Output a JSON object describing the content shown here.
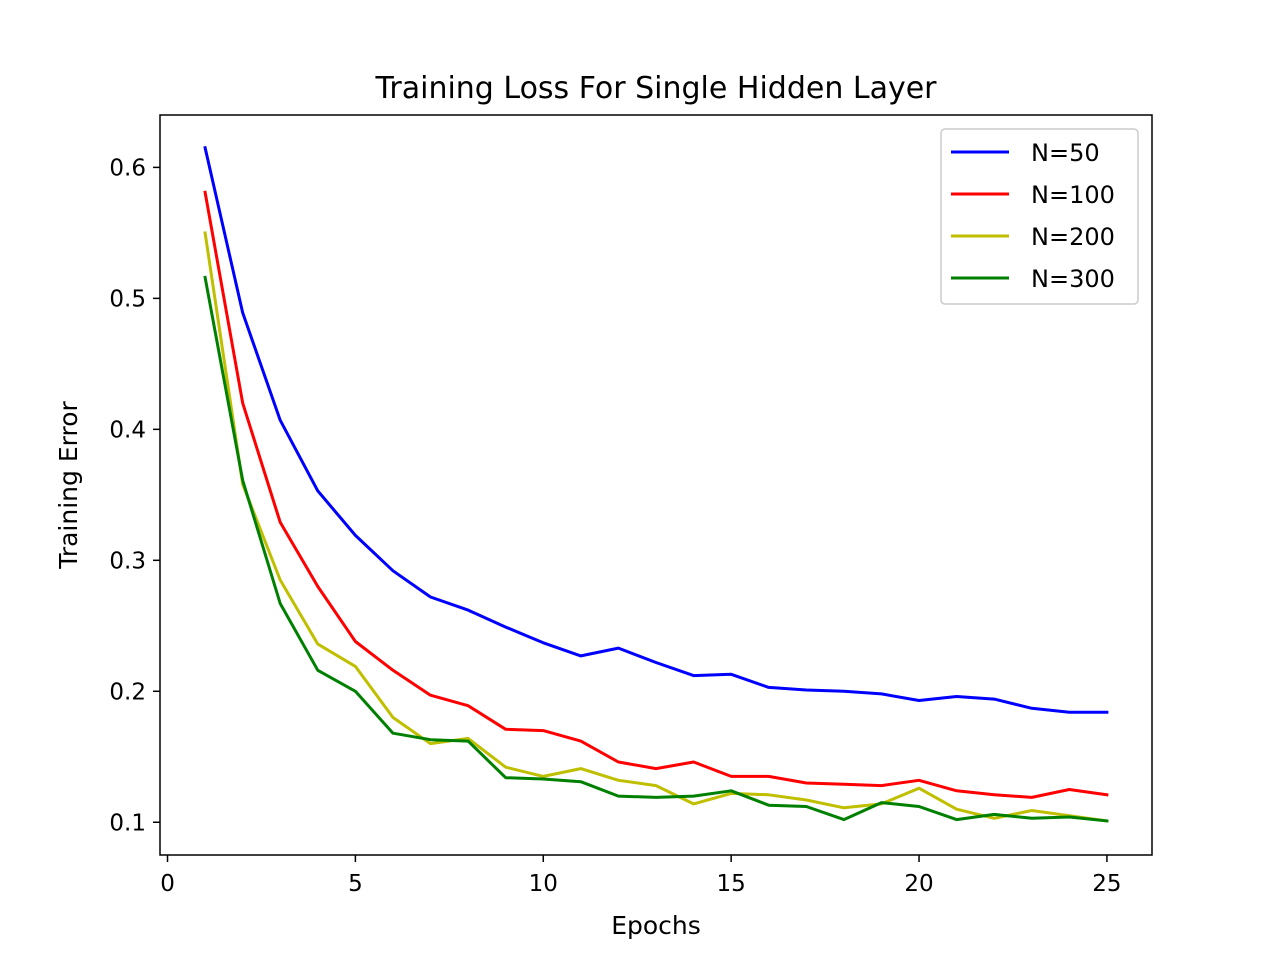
{
  "chart_data": {
    "type": "line",
    "title": "Training Loss For Single Hidden Layer",
    "xlabel": "Epochs",
    "ylabel": "Training Error",
    "xlim": [
      -0.2,
      26.2
    ],
    "ylim": [
      0.075,
      0.64
    ],
    "xticks": [
      0,
      5,
      10,
      15,
      20,
      25
    ],
    "yticks": [
      0.1,
      0.2,
      0.3,
      0.4,
      0.5,
      0.6
    ],
    "xtick_labels": [
      "0",
      "5",
      "10",
      "15",
      "20",
      "25"
    ],
    "ytick_labels": [
      "0.1",
      "0.2",
      "0.3",
      "0.4",
      "0.5",
      "0.6"
    ],
    "grid": false,
    "legend_position": "top-right",
    "x": [
      1,
      2,
      3,
      4,
      5,
      6,
      7,
      8,
      9,
      10,
      11,
      12,
      13,
      14,
      15,
      16,
      17,
      18,
      19,
      20,
      21,
      22,
      23,
      24,
      25
    ],
    "series": [
      {
        "name": "N=50",
        "color": "#0000ff",
        "values": [
          0.615,
          0.489,
          0.407,
          0.353,
          0.319,
          0.292,
          0.272,
          0.262,
          0.249,
          0.237,
          0.227,
          0.233,
          0.222,
          0.212,
          0.213,
          0.203,
          0.201,
          0.2,
          0.198,
          0.193,
          0.196,
          0.194,
          0.187,
          0.184,
          0.184
        ]
      },
      {
        "name": "N=100",
        "color": "#ff0000",
        "values": [
          0.581,
          0.42,
          0.329,
          0.28,
          0.238,
          0.216,
          0.197,
          0.189,
          0.171,
          0.17,
          0.162,
          0.146,
          0.141,
          0.146,
          0.135,
          0.135,
          0.13,
          0.129,
          0.128,
          0.132,
          0.124,
          0.121,
          0.119,
          0.125,
          0.121
        ]
      },
      {
        "name": "N=200",
        "color": "#bfbf00",
        "values": [
          0.55,
          0.358,
          0.285,
          0.236,
          0.219,
          0.18,
          0.16,
          0.164,
          0.142,
          0.135,
          0.141,
          0.132,
          0.128,
          0.114,
          0.122,
          0.121,
          0.117,
          0.111,
          0.114,
          0.126,
          0.11,
          0.103,
          0.109,
          0.105,
          0.101
        ]
      },
      {
        "name": "N=300",
        "color": "#008000",
        "values": [
          0.516,
          0.361,
          0.267,
          0.216,
          0.2,
          0.168,
          0.163,
          0.162,
          0.134,
          0.133,
          0.131,
          0.12,
          0.119,
          0.12,
          0.124,
          0.113,
          0.112,
          0.102,
          0.115,
          0.112,
          0.102,
          0.106,
          0.103,
          0.104,
          0.101
        ]
      }
    ]
  }
}
